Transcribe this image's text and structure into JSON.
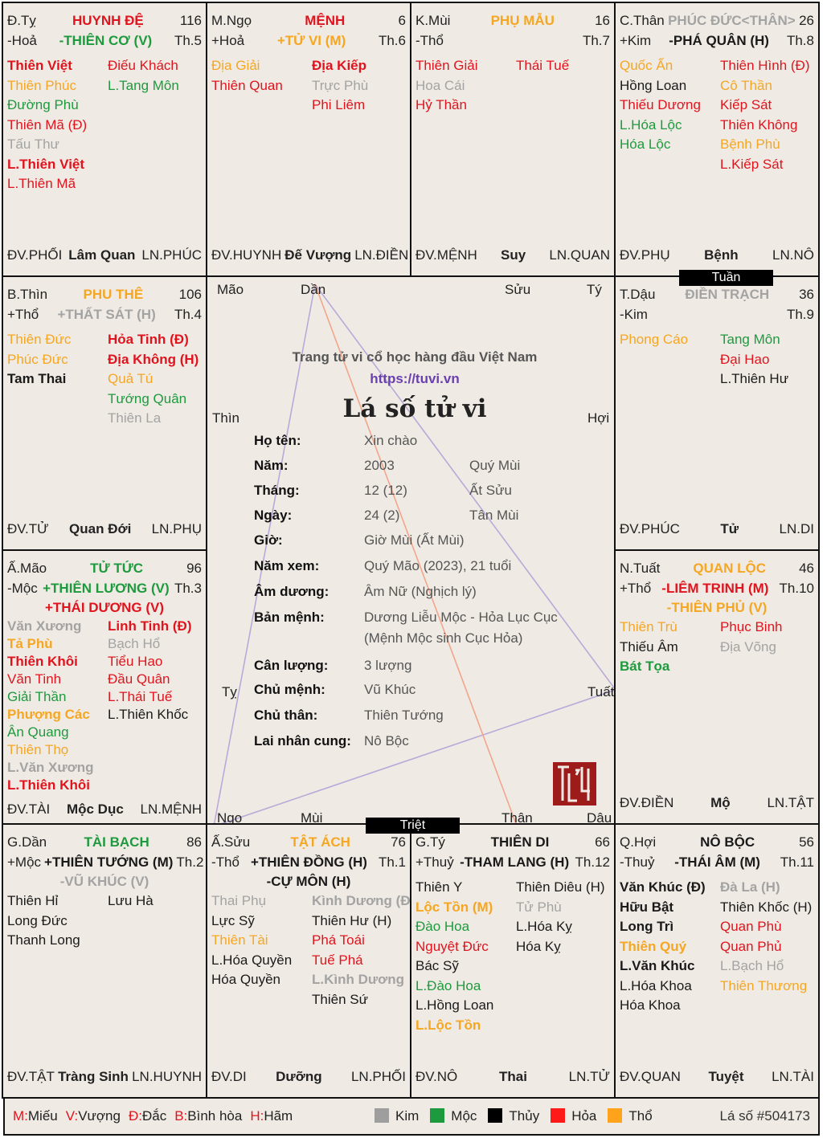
{
  "palette": {
    "r": "#e0141e",
    "g": "#1e9a3e",
    "o": "#f5a623",
    "s": "#a3a3a3",
    "k": "#1a1a1a"
  },
  "cells": [
    {
      "branch": "Đ.Tỵ",
      "palace": "HUYNH ĐỆ",
      "palace_color": "r",
      "age": "116",
      "element": "-Hoả",
      "month": "Th.5",
      "main": [
        {
          "t": "-THIÊN CƠ (V)",
          "c": "g"
        }
      ],
      "left": [
        {
          "t": "Thiên Việt",
          "c": "r",
          "b": true
        },
        {
          "t": "Thiên Phúc",
          "c": "o"
        },
        {
          "t": "Đường Phù",
          "c": "g"
        },
        {
          "t": "Thiên Mã (Đ)",
          "c": "r"
        },
        {
          "t": "Tấu Thư",
          "c": "s"
        },
        {
          "t": "L.Thiên Việt",
          "c": "r",
          "b": true
        },
        {
          "t": "L.Thiên Mã",
          "c": "r"
        }
      ],
      "right": [
        {
          "t": "Điếu Khách",
          "c": "r"
        },
        {
          "t": "L.Tang Môn",
          "c": "g"
        }
      ],
      "dv": "ĐV.PHỐI",
      "stage": "Lâm Quan",
      "ln": "LN.PHÚC"
    },
    {
      "branch": "M.Ngọ",
      "palace": "MỆNH",
      "palace_color": "r",
      "age": "6",
      "element": "+Hoả",
      "month": "Th.6",
      "main": [
        {
          "t": "+TỬ VI (M)",
          "c": "o"
        }
      ],
      "left": [
        {
          "t": "Địa Giải",
          "c": "o"
        },
        {
          "t": "Thiên Quan",
          "c": "r"
        }
      ],
      "right": [
        {
          "t": "Địa Kiếp",
          "c": "r",
          "b": true
        },
        {
          "t": "Trực Phù",
          "c": "s"
        },
        {
          "t": "Phi Liêm",
          "c": "r"
        }
      ],
      "dv": "ĐV.HUYNH",
      "stage": "Đế Vượng",
      "ln": "LN.ĐIỀN"
    },
    {
      "branch": "K.Mùi",
      "palace": "PHỤ MẪU",
      "palace_color": "o",
      "age": "16",
      "element": "-Thổ",
      "month": "Th.7",
      "main": [],
      "left": [
        {
          "t": "Thiên Giải",
          "c": "r"
        },
        {
          "t": "Hoa Cái",
          "c": "s"
        },
        {
          "t": "Hỷ Thần",
          "c": "r"
        }
      ],
      "right": [
        {
          "t": "Thái Tuế",
          "c": "r"
        }
      ],
      "dv": "ĐV.MỆNH",
      "stage": "Suy",
      "ln": "LN.QUAN"
    },
    {
      "branch": "C.Thân",
      "palace": "PHÚC ĐỨC<THÂN>",
      "palace_color": "s",
      "age": "26",
      "element": "+Kim",
      "month": "Th.8",
      "main": [
        {
          "t": "-PHÁ QUÂN (H)",
          "c": "k"
        }
      ],
      "left": [
        {
          "t": "Quốc Ấn",
          "c": "o"
        },
        {
          "t": "Hồng Loan",
          "c": "k"
        },
        {
          "t": "Thiếu Dương",
          "c": "r"
        },
        {
          "t": "L.Hóa Lộc",
          "c": "g"
        },
        {
          "t": "Hóa Lộc",
          "c": "g"
        }
      ],
      "right": [
        {
          "t": "Thiên Hình (Đ)",
          "c": "r"
        },
        {
          "t": "Cô Thần",
          "c": "o"
        },
        {
          "t": "Kiếp Sát",
          "c": "r"
        },
        {
          "t": "Thiên Không",
          "c": "r"
        },
        {
          "t": "Bệnh Phù",
          "c": "o"
        },
        {
          "t": "L.Kiếp Sát",
          "c": "r"
        }
      ],
      "dv": "ĐV.PHỤ",
      "stage": "Bệnh",
      "ln": "LN.NÔ"
    },
    {
      "branch": "B.Thìn",
      "palace": "PHU THÊ",
      "palace_color": "o",
      "age": "106",
      "element": "+Thổ",
      "month": "Th.4",
      "main": [
        {
          "t": "+THẤT SÁT (H)",
          "c": "s"
        }
      ],
      "left": [
        {
          "t": "Thiên Đức",
          "c": "o"
        },
        {
          "t": "Phúc Đức",
          "c": "o"
        },
        {
          "t": "Tam Thai",
          "c": "k",
          "b": true
        }
      ],
      "right": [
        {
          "t": "Hỏa Tinh (Đ)",
          "c": "r",
          "b": true
        },
        {
          "t": "Địa Không (H)",
          "c": "r",
          "b": true
        },
        {
          "t": "Quả Tú",
          "c": "o"
        },
        {
          "t": "Tướng Quân",
          "c": "g"
        },
        {
          "t": "Thiên La",
          "c": "s"
        }
      ],
      "dv": "ĐV.TỬ",
      "stage": "Quan Đới",
      "ln": "LN.PHỤ"
    },
    {
      "branch": "T.Dậu",
      "palace": "ĐIỀN TRẠCH",
      "palace_color": "s",
      "age": "36",
      "element": "-Kim",
      "month": "Th.9",
      "main": [],
      "left": [
        {
          "t": "Phong Cáo",
          "c": "o"
        }
      ],
      "right": [
        {
          "t": "Tang Môn",
          "c": "g"
        },
        {
          "t": "Đại Hao",
          "c": "r"
        },
        {
          "t": "L.Thiên Hư",
          "c": "k"
        }
      ],
      "dv": "ĐV.PHÚC",
      "stage": "Tử",
      "ln": "LN.DI"
    },
    {
      "branch": "Ấ.Mão",
      "palace": "TỬ TỨC",
      "palace_color": "g",
      "age": "96",
      "element": "-Mộc",
      "month": "Th.3",
      "main": [
        {
          "t": "+THIÊN LƯƠNG (V)",
          "c": "g"
        },
        {
          "t": "+THÁI DƯƠNG (V)",
          "c": "r"
        }
      ],
      "left": [
        {
          "t": "Văn Xương",
          "c": "s",
          "b": true
        },
        {
          "t": "Tả Phù",
          "c": "o",
          "b": true
        },
        {
          "t": "Thiên Khôi",
          "c": "r",
          "b": true
        },
        {
          "t": "Văn Tinh",
          "c": "r"
        },
        {
          "t": "Giải Thần",
          "c": "g"
        },
        {
          "t": "Phượng Các",
          "c": "o",
          "b": true
        },
        {
          "t": "Ân Quang",
          "c": "g"
        },
        {
          "t": "Thiên Thọ",
          "c": "o"
        },
        {
          "t": "L.Văn Xương",
          "c": "s",
          "b": true
        },
        {
          "t": "L.Thiên Khôi",
          "c": "r",
          "b": true
        }
      ],
      "right": [
        {
          "t": "Linh Tinh (Đ)",
          "c": "r",
          "b": true
        },
        {
          "t": "Bạch Hổ",
          "c": "s"
        },
        {
          "t": "Tiểu Hao",
          "c": "r"
        },
        {
          "t": "Đầu Quân",
          "c": "r"
        },
        {
          "t": "L.Thái Tuế",
          "c": "r"
        },
        {
          "t": "L.Thiên Khốc",
          "c": "k"
        }
      ],
      "dv": "ĐV.TÀI",
      "stage": "Mộc Dục",
      "ln": "LN.MỆNH"
    },
    {
      "branch": "N.Tuất",
      "palace": "QUAN LỘC",
      "palace_color": "o",
      "age": "46",
      "element": "+Thổ",
      "month": "Th.10",
      "main": [
        {
          "t": "-LIÊM TRINH (M)",
          "c": "r"
        },
        {
          "t": "-THIÊN PHỦ (V)",
          "c": "o"
        }
      ],
      "left": [
        {
          "t": "Thiên Trù",
          "c": "o"
        },
        {
          "t": "Thiếu Âm",
          "c": "k"
        },
        {
          "t": "Bát Tọa",
          "c": "g",
          "b": true
        }
      ],
      "right": [
        {
          "t": "Phục Binh",
          "c": "r"
        },
        {
          "t": "Địa Võng",
          "c": "s"
        }
      ],
      "dv": "ĐV.ĐIỀN",
      "stage": "Mộ",
      "ln": "LN.TẬT"
    },
    {
      "branch": "G.Dần",
      "palace": "TÀI BẠCH",
      "palace_color": "g",
      "age": "86",
      "element": "+Mộc",
      "month": "Th.2",
      "main": [
        {
          "t": "+THIÊN TƯỚNG (M)",
          "c": "k"
        },
        {
          "t": "-VŨ KHÚC (V)",
          "c": "s"
        }
      ],
      "left": [
        {
          "t": "Thiên Hỉ",
          "c": "k"
        },
        {
          "t": "Long Đức",
          "c": "k"
        },
        {
          "t": "Thanh Long",
          "c": "k"
        }
      ],
      "right": [
        {
          "t": "Lưu Hà",
          "c": "k"
        }
      ],
      "dv": "ĐV.TẬT",
      "stage": "Tràng Sinh",
      "ln": "LN.HUYNH"
    },
    {
      "branch": "Ấ.Sửu",
      "palace": "TẬT ÁCH",
      "palace_color": "o",
      "age": "76",
      "element": "-Thổ",
      "month": "Th.1",
      "main": [
        {
          "t": "+THIÊN ĐỒNG (H)",
          "c": "k"
        },
        {
          "t": "-CỰ MÔN (H)",
          "c": "k"
        }
      ],
      "left": [
        {
          "t": "Thai Phụ",
          "c": "s"
        },
        {
          "t": "Lực Sỹ",
          "c": "k"
        },
        {
          "t": "Thiên Tài",
          "c": "o"
        },
        {
          "t": "L.Hóa Quyền",
          "c": "k"
        },
        {
          "t": "Hóa Quyền",
          "c": "k"
        }
      ],
      "right": [
        {
          "t": "Kình Dương (Đ)",
          "c": "s",
          "b": true
        },
        {
          "t": "Thiên Hư (H)",
          "c": "k"
        },
        {
          "t": "Phá Toái",
          "c": "r"
        },
        {
          "t": "Tuế Phá",
          "c": "r"
        },
        {
          "t": "L.Kình Dương",
          "c": "s",
          "b": true
        },
        {
          "t": "Thiên Sứ",
          "c": "k"
        }
      ],
      "dv": "ĐV.DI",
      "stage": "Dưỡng",
      "ln": "LN.PHỐI"
    },
    {
      "branch": "G.Tý",
      "palace": "THIÊN DI",
      "palace_color": "k",
      "age": "66",
      "element": "+Thuỷ",
      "month": "Th.12",
      "main": [
        {
          "t": "-THAM LANG (H)",
          "c": "k"
        }
      ],
      "left": [
        {
          "t": "Thiên Y",
          "c": "k"
        },
        {
          "t": "Lộc Tồn (M)",
          "c": "o",
          "b": true
        },
        {
          "t": "Đào Hoa",
          "c": "g"
        },
        {
          "t": "Nguyệt Đức",
          "c": "r"
        },
        {
          "t": "Bác Sỹ",
          "c": "k"
        },
        {
          "t": "L.Đào Hoa",
          "c": "g"
        },
        {
          "t": "L.Hồng Loan",
          "c": "k"
        },
        {
          "t": "L.Lộc Tồn",
          "c": "o",
          "b": true
        }
      ],
      "right": [
        {
          "t": "Thiên Diêu (H)",
          "c": "k"
        },
        {
          "t": "Tử Phù",
          "c": "s"
        },
        {
          "t": "L.Hóa Kỵ",
          "c": "k"
        },
        {
          "t": "Hóa Kỵ",
          "c": "k"
        }
      ],
      "dv": "ĐV.NÔ",
      "stage": "Thai",
      "ln": "LN.TỬ"
    },
    {
      "branch": "Q.Hợi",
      "palace": "NÔ BỘC",
      "palace_color": "k",
      "age": "56",
      "element": "-Thuỷ",
      "month": "Th.11",
      "main": [
        {
          "t": "-THÁI ÂM (M)",
          "c": "k"
        }
      ],
      "left": [
        {
          "t": "Văn Khúc (Đ)",
          "c": "k",
          "b": true
        },
        {
          "t": "Hữu Bật",
          "c": "k",
          "b": true
        },
        {
          "t": "Long Trì",
          "c": "k",
          "b": true
        },
        {
          "t": "Thiên Quý",
          "c": "o",
          "b": true
        },
        {
          "t": "L.Văn Khúc",
          "c": "k",
          "b": true
        },
        {
          "t": "L.Hóa Khoa",
          "c": "k"
        },
        {
          "t": "Hóa Khoa",
          "c": "k"
        }
      ],
      "right": [
        {
          "t": "Đà La (H)",
          "c": "s",
          "b": true
        },
        {
          "t": "Thiên Khốc (H)",
          "c": "k"
        },
        {
          "t": "Quan Phù",
          "c": "r"
        },
        {
          "t": "Quan Phủ",
          "c": "r"
        },
        {
          "t": "L.Bạch Hổ",
          "c": "s"
        },
        {
          "t": "Thiên Thương",
          "c": "o"
        }
      ],
      "dv": "ĐV.QUAN",
      "stage": "Tuyệt",
      "ln": "LN.TÀI"
    }
  ],
  "markers": {
    "tuan": "Tuần",
    "triet": "Triệt"
  },
  "center": {
    "corners": [
      "Mão",
      "Dần",
      "Sửu",
      "Tý",
      "Thìn",
      "Hợi",
      "Tỵ",
      "Tuất",
      "Ngọ",
      "Mùi",
      "Thân",
      "Dậu"
    ],
    "tagline": "Trang tử vi cổ học hàng đầu Việt Nam",
    "url": "https://tuvi.vn",
    "title": "Lá số tử vi",
    "info": [
      {
        "label": "Họ tên:",
        "value": "Xin chào",
        "extra": ""
      },
      {
        "label": "Năm:",
        "value": "2003",
        "extra": "Quý Mùi"
      },
      {
        "label": "Tháng:",
        "value": "12 (12)",
        "extra": "Ất Sửu"
      },
      {
        "label": "Ngày:",
        "value": "24 (2)",
        "extra": "Tân Mùi"
      },
      {
        "label": "Giờ:",
        "value": "Giờ Mùi (Ất Mùi)",
        "extra": ""
      },
      {
        "label": "Năm xem:",
        "value": "Quý Mão (2023), 21 tuổi",
        "extra": ""
      },
      {
        "label": "Âm dương:",
        "value": "Âm Nữ (Nghịch lý)",
        "extra": ""
      },
      {
        "label": "Bản mệnh:",
        "value": "Dương Liễu Mộc - Hỏa Lục Cục",
        "extra": ""
      },
      {
        "label": "",
        "value": "(Mệnh Mộc sinh Cục Hỏa)",
        "extra": ""
      },
      {
        "label": "Cân lượng:",
        "value": "3 lượng",
        "extra": ""
      },
      {
        "label": "Chủ mệnh:",
        "value": "Vũ Khúc",
        "extra": ""
      },
      {
        "label": "Chủ thân:",
        "value": "Thiên Tướng",
        "extra": ""
      },
      {
        "label": "Lai nhân cung:",
        "value": "Nô Bộc",
        "extra": ""
      }
    ],
    "stamp": "Tử Vi",
    "line_colors": {
      "triangle": "#b9a9d9",
      "axis": "#f2a58a"
    }
  },
  "legend": {
    "brightness": [
      {
        "k": "M:",
        "v": "Miếu"
      },
      {
        "k": "V:",
        "v": "Vượng"
      },
      {
        "k": "Đ:",
        "v": "Đắc"
      },
      {
        "k": "B:",
        "v": "Bình hòa"
      },
      {
        "k": "H:",
        "v": "Hãm"
      }
    ],
    "elements": [
      {
        "name": "Kim",
        "color": "#9e9e9e"
      },
      {
        "name": "Mộc",
        "color": "#1e9a3e"
      },
      {
        "name": "Thủy",
        "color": "#000000"
      },
      {
        "name": "Hỏa",
        "color": "#ff1a1a"
      },
      {
        "name": "Thổ",
        "color": "#ffa31a"
      }
    ],
    "chart_id": "Lá số #504173"
  }
}
